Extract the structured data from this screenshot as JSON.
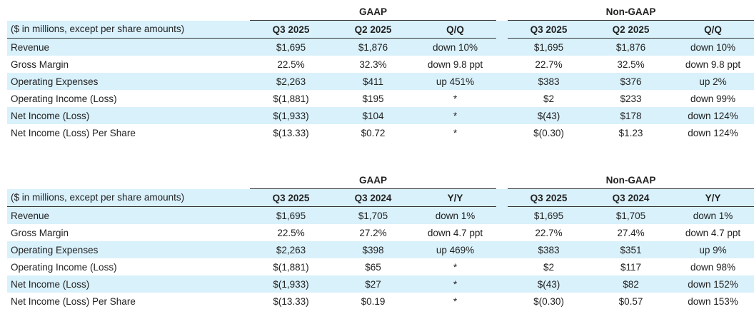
{
  "tables": [
    {
      "gaap_label": "GAAP",
      "nongaap_label": "Non-GAAP",
      "caption": "($ in millions, except per share amounts)",
      "gaap_cols": [
        "Q3 2025",
        "Q2 2025",
        "Q/Q"
      ],
      "nongaap_cols": [
        "Q3 2025",
        "Q2 2025",
        "Q/Q"
      ],
      "rows": [
        {
          "label": "Revenue",
          "g": [
            "$1,695",
            "$1,876",
            "down 10%"
          ],
          "n": [
            "$1,695",
            "$1,876",
            "down 10%"
          ]
        },
        {
          "label": "Gross Margin",
          "g": [
            "22.5%",
            "32.3%",
            "down 9.8 ppt"
          ],
          "n": [
            "22.7%",
            "32.5%",
            "down 9.8 ppt"
          ]
        },
        {
          "label": "Operating Expenses",
          "g": [
            "$2,263",
            "$411",
            "up 451%"
          ],
          "n": [
            "$383",
            "$376",
            "up 2%"
          ]
        },
        {
          "label": "Operating Income (Loss)",
          "g": [
            "$(1,881)",
            "$195",
            "*"
          ],
          "n": [
            "$2",
            "$233",
            "down 99%"
          ]
        },
        {
          "label": "Net Income (Loss)",
          "g": [
            "$(1,933)",
            "$104",
            "*"
          ],
          "n": [
            "$(43)",
            "$178",
            "down 124%"
          ]
        },
        {
          "label": "Net Income (Loss) Per Share",
          "g": [
            "$(13.33)",
            "$0.72",
            "*"
          ],
          "n": [
            "$(0.30)",
            "$1.23",
            "down 124%"
          ]
        }
      ]
    },
    {
      "gaap_label": "GAAP",
      "nongaap_label": "Non-GAAP",
      "caption": "($ in millions, except per share amounts)",
      "gaap_cols": [
        "Q3 2025",
        "Q3 2024",
        "Y/Y"
      ],
      "nongaap_cols": [
        "Q3 2025",
        "Q3 2024",
        "Y/Y"
      ],
      "rows": [
        {
          "label": "Revenue",
          "g": [
            "$1,695",
            "$1,705",
            "down 1%"
          ],
          "n": [
            "$1,695",
            "$1,705",
            "down 1%"
          ]
        },
        {
          "label": "Gross Margin",
          "g": [
            "22.5%",
            "27.2%",
            "down 4.7 ppt"
          ],
          "n": [
            "22.7%",
            "27.4%",
            "down 4.7 ppt"
          ]
        },
        {
          "label": "Operating Expenses",
          "g": [
            "$2,263",
            "$398",
            "up 469%"
          ],
          "n": [
            "$383",
            "$351",
            "up 9%"
          ]
        },
        {
          "label": "Operating Income (Loss)",
          "g": [
            "$(1,881)",
            "$65",
            "*"
          ],
          "n": [
            "$2",
            "$117",
            "down 98%"
          ]
        },
        {
          "label": "Net Income (Loss)",
          "g": [
            "$(1,933)",
            "$27",
            "*"
          ],
          "n": [
            "$(43)",
            "$82",
            "down 152%"
          ]
        },
        {
          "label": "Net Income (Loss) Per Share",
          "g": [
            "$(13.33)",
            "$0.19",
            "*"
          ],
          "n": [
            "$(0.30)",
            "$0.57",
            "down 153%"
          ]
        }
      ]
    }
  ]
}
